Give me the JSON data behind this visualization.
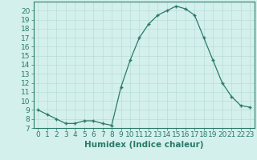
{
  "x": [
    0,
    1,
    2,
    3,
    4,
    5,
    6,
    7,
    8,
    9,
    10,
    11,
    12,
    13,
    14,
    15,
    16,
    17,
    18,
    19,
    20,
    21,
    22,
    23
  ],
  "y": [
    9.0,
    8.5,
    8.0,
    7.5,
    7.5,
    7.8,
    7.8,
    7.5,
    7.3,
    11.5,
    14.5,
    17.0,
    18.5,
    19.5,
    20.0,
    20.5,
    20.2,
    19.5,
    17.0,
    14.5,
    12.0,
    10.5,
    9.5,
    9.3
  ],
  "xlabel": "Humidex (Indice chaleur)",
  "line_color": "#2a7a6a",
  "marker": "+",
  "bg_color": "#d4f0ec",
  "grid_color": "#b8ddd8",
  "xlim": [
    -0.5,
    23.5
  ],
  "ylim": [
    7,
    21
  ],
  "yticks": [
    7,
    8,
    9,
    10,
    11,
    12,
    13,
    14,
    15,
    16,
    17,
    18,
    19,
    20
  ],
  "xticks": [
    0,
    1,
    2,
    3,
    4,
    5,
    6,
    7,
    8,
    9,
    10,
    11,
    12,
    13,
    14,
    15,
    16,
    17,
    18,
    19,
    20,
    21,
    22,
    23
  ],
  "label_fontsize": 7.5,
  "tick_fontsize": 6.5
}
